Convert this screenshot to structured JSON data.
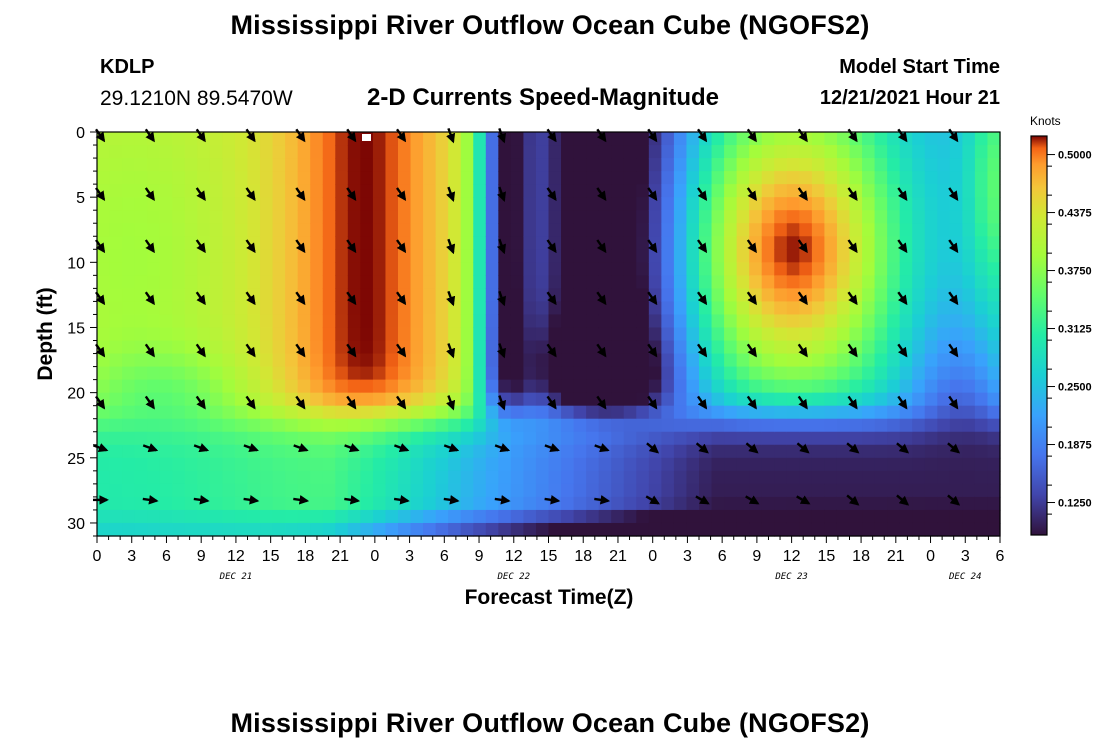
{
  "header": {
    "title": "Mississippi River Outflow Ocean Cube (NGOFS2)",
    "title_bottom": "Mississippi River Outflow Ocean Cube (NGOFS2)",
    "station_id": "KDLP",
    "station_coords": "29.1210N  89.5470W",
    "subtitle": "2-D Currents Speed-Magnitude",
    "model_start_label": "Model Start Time",
    "model_start_value": "12/21/2021 Hour 21"
  },
  "chart_data": {
    "type": "heatmap",
    "title": "2-D Currents Speed-Magnitude",
    "xlabel": "Forecast Time(Z)",
    "ylabel": "Depth (ft)",
    "x_range_hours": [
      0,
      78
    ],
    "ylim": [
      0,
      31
    ],
    "y_ticks": [
      0,
      5,
      10,
      15,
      20,
      25,
      30
    ],
    "x_tick_labels": [
      "0",
      "3",
      "6",
      "9",
      "12",
      "15",
      "18",
      "21",
      "0",
      "3",
      "6",
      "9",
      "12",
      "15",
      "18",
      "21",
      "0",
      "3",
      "6",
      "9",
      "12",
      "15",
      "18",
      "21",
      "0",
      "3",
      "6"
    ],
    "date_labels": [
      {
        "label": "DEC 21",
        "hour": 12
      },
      {
        "label": "DEC 22",
        "hour": 36
      },
      {
        "label": "DEC 23",
        "hour": 60
      },
      {
        "label": "DEC 24",
        "hour": 75
      }
    ],
    "colorbar": {
      "unit": "Knots",
      "min": 0.09,
      "max": 0.52,
      "ticks": [
        "0.5000",
        "0.4375",
        "0.3750",
        "0.3125",
        "0.2500",
        "0.1875",
        "0.1250"
      ]
    },
    "arrow_depths_ft": [
      0,
      4.5,
      8.5,
      12.5,
      16.5,
      20.5,
      24,
      28
    ],
    "arrow_hours": [
      0,
      4.3,
      8.7,
      13,
      17.3,
      21.7,
      26,
      30.3,
      34.7,
      39,
      43.3,
      47.7,
      52,
      56.3,
      60.7,
      65,
      69.3,
      73.7
    ]
  }
}
